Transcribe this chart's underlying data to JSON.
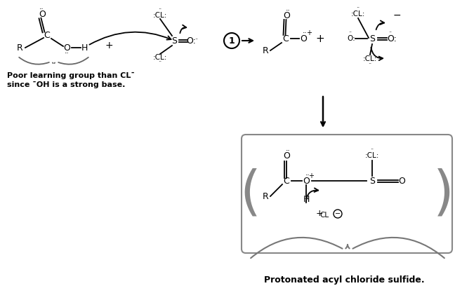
{
  "background_color": "#ffffff",
  "label_bottom": "Protonated acyl chloride sulfide.",
  "label_poor_line1": "Poor learning group than CL¯",
  "label_poor_line2": "since ¯OH is a strong base.",
  "figsize": [
    6.48,
    4.28
  ],
  "dpi": 100
}
